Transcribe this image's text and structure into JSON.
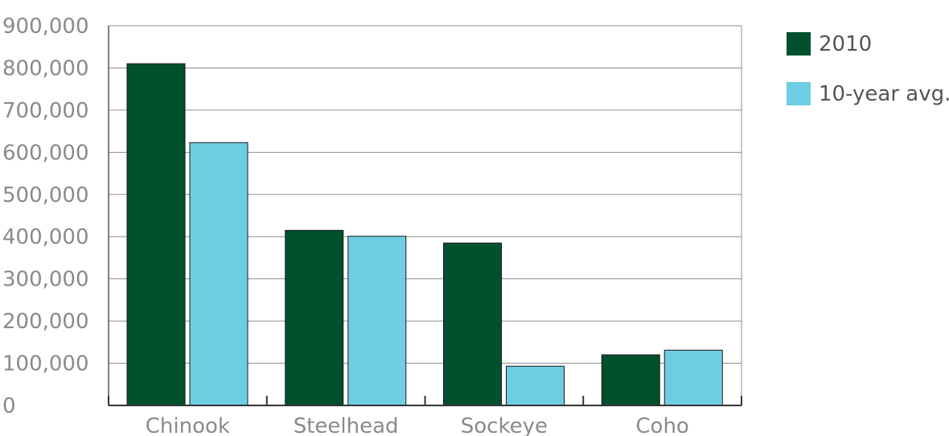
{
  "chart_data": {
    "type": "bar",
    "title": "",
    "xlabel": "",
    "ylabel": "",
    "categories": [
      "Chinook",
      "Steelhead",
      "Sockeye",
      "Coho"
    ],
    "series": [
      {
        "name": "2010",
        "color": "#00502e",
        "values": [
          810000,
          415000,
          385000,
          120000
        ]
      },
      {
        "name": "10-year avg.",
        "color": "#6fcde3",
        "values": [
          623000,
          401000,
          93000,
          131000
        ]
      }
    ],
    "ylim": [
      0,
      900000
    ],
    "yticks": [
      0,
      100000,
      200000,
      300000,
      400000,
      500000,
      600000,
      700000,
      800000,
      900000
    ],
    "ytick_labels": [
      "0",
      "100,000",
      "200,000",
      "300,000",
      "400,000",
      "500,000",
      "600,000",
      "700,000",
      "800,000",
      "900,000"
    ],
    "grid": true,
    "legend": "right"
  }
}
